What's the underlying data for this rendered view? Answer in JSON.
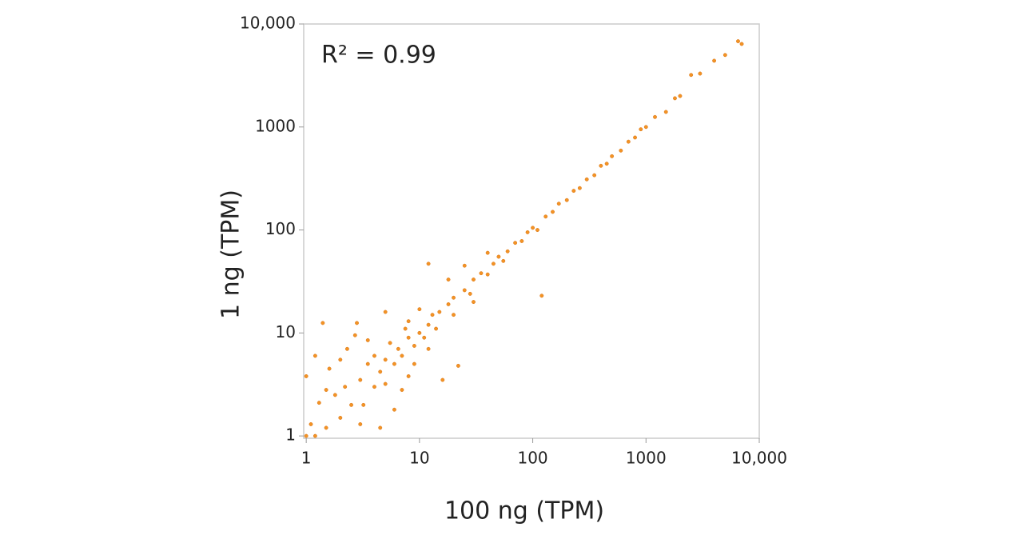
{
  "chart_data": {
    "type": "scatter",
    "annotation": "R² = 0.99",
    "x_label": "100 ng (TPM)",
    "y_label": "1 ng (TPM)",
    "log_x": true,
    "log_y": true,
    "color": "#f39325",
    "xlim": [
      0.95,
      10000
    ],
    "ylim": [
      0.95,
      10000
    ],
    "xticks": [
      1,
      10,
      100,
      1000,
      {
        "value": 10000,
        "label": "10,000"
      }
    ],
    "yticks": [
      1,
      10,
      100,
      1000,
      {
        "value": 10000,
        "label": "10,000"
      }
    ],
    "x": [
      1,
      1.1,
      1.2,
      1.3,
      1.5,
      1.0,
      1.4,
      1.8,
      2,
      2.2,
      2.5,
      2.7,
      3,
      3.2,
      3.5,
      4,
      4,
      4.5,
      5,
      5,
      5.5,
      6,
      6.5,
      7,
      7,
      8,
      8,
      9,
      10,
      10,
      11,
      12,
      12,
      13,
      14,
      15,
      16,
      18,
      20,
      20,
      22,
      25,
      28,
      30,
      35,
      40,
      45,
      50,
      55,
      60,
      70,
      80,
      90,
      100,
      110,
      120,
      130,
      150,
      170,
      200,
      230,
      260,
      300,
      350,
      400,
      450,
      500,
      600,
      700,
      800,
      900,
      1000,
      1200,
      1500,
      1800,
      2000,
      2500,
      3000,
      4000,
      5000,
      6500,
      7000,
      2,
      1.5,
      3,
      2.8,
      4.5,
      6,
      9,
      1.2,
      1.6,
      7.5,
      12,
      25,
      18,
      30,
      40,
      8,
      5,
      3.5,
      2.3
    ],
    "values": [
      1,
      1.3,
      1,
      2.1,
      1.2,
      3.8,
      12.5,
      2.5,
      1.5,
      3,
      2,
      9.5,
      3.5,
      2,
      5,
      3,
      6,
      4.2,
      5.5,
      3.2,
      8,
      5,
      7,
      6,
      2.8,
      9,
      13,
      7.5,
      10,
      17,
      9,
      47,
      12,
      15,
      11,
      16,
      3.5,
      19,
      22,
      15,
      4.8,
      26,
      24,
      33,
      38,
      37,
      47,
      55,
      50,
      62,
      75,
      78,
      95,
      105,
      100,
      23,
      135,
      150,
      180,
      195,
      240,
      255,
      310,
      340,
      420,
      440,
      520,
      590,
      720,
      790,
      950,
      1000,
      1250,
      1400,
      1900,
      2000,
      3200,
      3300,
      4400,
      5000,
      6800,
      6400,
      5.5,
      2.8,
      1.3,
      12.5,
      1.2,
      1.8,
      5,
      6,
      4.5,
      11,
      7,
      45,
      33,
      20,
      60,
      3.8,
      16,
      8.5,
      7
    ]
  }
}
